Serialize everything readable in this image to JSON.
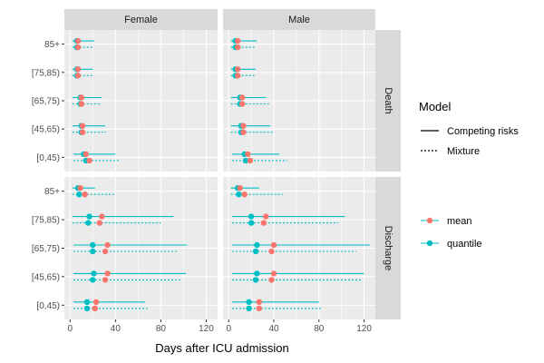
{
  "chart_data": {
    "type": "dot-interval",
    "xlabel": "Days after ICU admission",
    "xlim": [
      -5,
      130
    ],
    "xticks": [
      0,
      40,
      80,
      120
    ],
    "categories": [
      "85+",
      "[75,85)",
      "[65,75)",
      "[45,65)",
      "[0,45)"
    ],
    "columns": [
      "Female",
      "Male"
    ],
    "rows": [
      "Death",
      "Discharge"
    ],
    "colors": {
      "mean": "#F8766D",
      "quantile": "#00BFC4"
    },
    "legend": {
      "model_title": "Model",
      "model_items": [
        {
          "label": "Competing risks",
          "linetype": "solid"
        },
        {
          "label": "Mixture",
          "linetype": "dotted"
        }
      ],
      "stat_items": [
        {
          "label": "mean",
          "key": "mean"
        },
        {
          "label": "quantile",
          "key": "quantile"
        }
      ]
    },
    "panels": [
      {
        "row": "Death",
        "col": "Female",
        "estimates": [
          {
            "category": "85+",
            "model": "Competing risks",
            "mean": 7,
            "quantile": 6,
            "lo": 2,
            "hi": 21
          },
          {
            "category": "85+",
            "model": "Mixture",
            "mean": 7,
            "quantile": 6,
            "lo": 2,
            "hi": 21
          },
          {
            "category": "[75,85)",
            "model": "Competing risks",
            "mean": 7,
            "quantile": 6,
            "lo": 2,
            "hi": 20
          },
          {
            "category": "[75,85)",
            "model": "Mixture",
            "mean": 7,
            "quantile": 6,
            "lo": 2,
            "hi": 20
          },
          {
            "category": "[65,75)",
            "model": "Competing risks",
            "mean": 10,
            "quantile": 9,
            "lo": 2,
            "hi": 28
          },
          {
            "category": "[65,75)",
            "model": "Mixture",
            "mean": 10,
            "quantile": 9,
            "lo": 2,
            "hi": 28
          },
          {
            "category": "[45,65)",
            "model": "Competing risks",
            "mean": 11,
            "quantile": 10,
            "lo": 2,
            "hi": 31
          },
          {
            "category": "[45,65)",
            "model": "Mixture",
            "mean": 11,
            "quantile": 10,
            "lo": 2,
            "hi": 32
          },
          {
            "category": "[0,45)",
            "model": "Competing risks",
            "mean": 14,
            "quantile": 12,
            "lo": 3,
            "hi": 40
          },
          {
            "category": "[0,45)",
            "model": "Mixture",
            "mean": 17,
            "quantile": 14,
            "lo": 3,
            "hi": 44
          }
        ]
      },
      {
        "row": "Death",
        "col": "Male",
        "estimates": [
          {
            "category": "85+",
            "model": "Competing risks",
            "mean": 8,
            "quantile": 6,
            "lo": 2,
            "hi": 25
          },
          {
            "category": "85+",
            "model": "Mixture",
            "mean": 8,
            "quantile": 6,
            "lo": 2,
            "hi": 24
          },
          {
            "category": "[75,85)",
            "model": "Competing risks",
            "mean": 8,
            "quantile": 6,
            "lo": 2,
            "hi": 24
          },
          {
            "category": "[75,85)",
            "model": "Mixture",
            "mean": 8,
            "quantile": 6,
            "lo": 2,
            "hi": 24
          },
          {
            "category": "[65,75)",
            "model": "Competing risks",
            "mean": 12,
            "quantile": 10,
            "lo": 2,
            "hi": 33
          },
          {
            "category": "[65,75)",
            "model": "Mixture",
            "mean": 12,
            "quantile": 10,
            "lo": 2,
            "hi": 36
          },
          {
            "category": "[45,65)",
            "model": "Competing risks",
            "mean": 13,
            "quantile": 11,
            "lo": 2,
            "hi": 37
          },
          {
            "category": "[45,65)",
            "model": "Mixture",
            "mean": 13,
            "quantile": 11,
            "lo": 2,
            "hi": 39
          },
          {
            "category": "[0,45)",
            "model": "Competing risks",
            "mean": 17,
            "quantile": 14,
            "lo": 3,
            "hi": 45
          },
          {
            "category": "[0,45)",
            "model": "Mixture",
            "mean": 19,
            "quantile": 15,
            "lo": 3,
            "hi": 52
          }
        ]
      },
      {
        "row": "Discharge",
        "col": "Female",
        "estimates": [
          {
            "category": "85+",
            "model": "Competing risks",
            "mean": 9,
            "quantile": 7,
            "lo": 2,
            "hi": 22
          },
          {
            "category": "85+",
            "model": "Mixture",
            "mean": 13,
            "quantile": 8,
            "lo": 2,
            "hi": 40
          },
          {
            "category": "[75,85)",
            "model": "Competing risks",
            "mean": 28,
            "quantile": 17,
            "lo": 2,
            "hi": 91
          },
          {
            "category": "[75,85)",
            "model": "Mixture",
            "mean": 26,
            "quantile": 16,
            "lo": 2,
            "hi": 80
          },
          {
            "category": "[65,75)",
            "model": "Competing risks",
            "mean": 33,
            "quantile": 20,
            "lo": 3,
            "hi": 103
          },
          {
            "category": "[65,75)",
            "model": "Mixture",
            "mean": 31,
            "quantile": 20,
            "lo": 3,
            "hi": 95
          },
          {
            "category": "[45,65)",
            "model": "Competing risks",
            "mean": 33,
            "quantile": 21,
            "lo": 3,
            "hi": 102
          },
          {
            "category": "[45,65)",
            "model": "Mixture",
            "mean": 31,
            "quantile": 20,
            "lo": 3,
            "hi": 97
          },
          {
            "category": "[0,45)",
            "model": "Competing risks",
            "mean": 23,
            "quantile": 15,
            "lo": 3,
            "hi": 66
          },
          {
            "category": "[0,45)",
            "model": "Mixture",
            "mean": 22,
            "quantile": 15,
            "lo": 3,
            "hi": 68
          }
        ]
      },
      {
        "row": "Discharge",
        "col": "Male",
        "estimates": [
          {
            "category": "85+",
            "model": "Competing risks",
            "mean": 10,
            "quantile": 8,
            "lo": 2,
            "hi": 27
          },
          {
            "category": "85+",
            "model": "Mixture",
            "mean": 14,
            "quantile": 9,
            "lo": 2,
            "hi": 48
          },
          {
            "category": "[75,85)",
            "model": "Competing risks",
            "mean": 33,
            "quantile": 20,
            "lo": 3,
            "hi": 103
          },
          {
            "category": "[75,85)",
            "model": "Mixture",
            "mean": 31,
            "quantile": 20,
            "lo": 3,
            "hi": 97
          },
          {
            "category": "[65,75)",
            "model": "Competing risks",
            "mean": 40,
            "quantile": 25,
            "lo": 3,
            "hi": 125
          },
          {
            "category": "[65,75)",
            "model": "Mixture",
            "mean": 38,
            "quantile": 24,
            "lo": 3,
            "hi": 113
          },
          {
            "category": "[45,65)",
            "model": "Competing risks",
            "mean": 40,
            "quantile": 25,
            "lo": 3,
            "hi": 120
          },
          {
            "category": "[45,65)",
            "model": "Mixture",
            "mean": 38,
            "quantile": 24,
            "lo": 3,
            "hi": 118
          },
          {
            "category": "[0,45)",
            "model": "Competing risks",
            "mean": 27,
            "quantile": 18,
            "lo": 3,
            "hi": 80
          },
          {
            "category": "[0,45)",
            "model": "Mixture",
            "mean": 27,
            "quantile": 18,
            "lo": 3,
            "hi": 83
          }
        ]
      }
    ]
  }
}
